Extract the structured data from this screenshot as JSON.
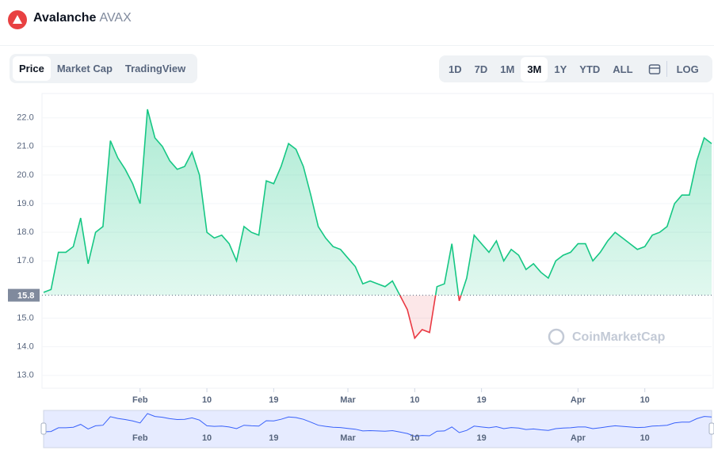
{
  "header": {
    "name": "Avalanche",
    "symbol": "AVAX"
  },
  "tabs": [
    "Price",
    "Market Cap",
    "TradingView"
  ],
  "ranges": [
    "1D",
    "7D",
    "1M",
    "3M",
    "1Y",
    "YTD",
    "ALL"
  ],
  "scale_button": "LOG",
  "watermark": "CoinMarketCap",
  "chart_data": {
    "type": "line",
    "categories": [
      "Jan 19",
      "Jan 20",
      "Jan 21",
      "Jan 22",
      "Jan 23",
      "Jan 24",
      "Jan 25",
      "Jan 26",
      "Jan 27",
      "Jan 28",
      "Jan 29",
      "Jan 30",
      "Jan 31",
      "Feb 1",
      "Feb 2",
      "Feb 3",
      "Feb 4",
      "Feb 5",
      "Feb 6",
      "Feb 7",
      "Feb 8",
      "Feb 9",
      "Feb 10",
      "Feb 11",
      "Feb 12",
      "Feb 13",
      "Feb 14",
      "Feb 15",
      "Feb 16",
      "Feb 17",
      "Feb 18",
      "Feb 19",
      "Feb 20",
      "Feb 21",
      "Feb 22",
      "Feb 23",
      "Feb 24",
      "Feb 25",
      "Feb 26",
      "Feb 27",
      "Feb 28",
      "Mar 1",
      "Mar 2",
      "Mar 3",
      "Mar 4",
      "Mar 5",
      "Mar 6",
      "Mar 7",
      "Mar 8",
      "Mar 9",
      "Mar 10",
      "Mar 11",
      "Mar 12",
      "Mar 13",
      "Mar 14",
      "Mar 15",
      "Mar 16",
      "Mar 17",
      "Mar 18",
      "Mar 19",
      "Mar 20",
      "Mar 21",
      "Mar 22",
      "Mar 23",
      "Mar 24",
      "Mar 25",
      "Mar 26",
      "Mar 27",
      "Mar 28",
      "Mar 29",
      "Mar 30",
      "Mar 31",
      "Apr 1",
      "Apr 2",
      "Apr 3",
      "Apr 4",
      "Apr 5",
      "Apr 6",
      "Apr 7",
      "Apr 8",
      "Apr 9",
      "Apr 10",
      "Apr 11",
      "Apr 12",
      "Apr 13",
      "Apr 14",
      "Apr 15",
      "Apr 16",
      "Apr 17",
      "Apr 18",
      "Apr 19"
    ],
    "series": [
      {
        "name": "Price",
        "color": "#16c784",
        "below_color": "#ea3943",
        "values": [
          15.9,
          16.0,
          17.3,
          17.3,
          17.5,
          18.5,
          16.9,
          18.0,
          18.2,
          21.2,
          20.6,
          20.2,
          19.7,
          19.0,
          22.3,
          21.3,
          21.0,
          20.5,
          20.2,
          20.3,
          20.8,
          20.0,
          18.0,
          17.8,
          17.9,
          17.6,
          17.0,
          18.2,
          18.0,
          17.9,
          19.8,
          19.7,
          20.3,
          21.1,
          20.9,
          20.3,
          19.3,
          18.2,
          17.8,
          17.5,
          17.4,
          17.1,
          16.8,
          16.2,
          16.3,
          16.2,
          16.1,
          16.3,
          15.8,
          15.3,
          14.3,
          14.6,
          14.5,
          16.1,
          16.2,
          17.6,
          15.6,
          16.4,
          17.9,
          17.6,
          17.3,
          17.7,
          17.0,
          17.4,
          17.2,
          16.7,
          16.9,
          16.6,
          16.4,
          17.0,
          17.2,
          17.3,
          17.6,
          17.6,
          17.0,
          17.3,
          17.7,
          18.0,
          17.8,
          17.6,
          17.4,
          17.5,
          17.9,
          18.0,
          18.2,
          19.0,
          19.3,
          19.3,
          20.5,
          21.3,
          21.1
        ]
      }
    ],
    "reference_price": 15.8,
    "ylim": [
      12.55,
      22.85
    ],
    "yticks": [
      {
        "value": 13,
        "label": "13.0"
      },
      {
        "value": 14,
        "label": "14.0"
      },
      {
        "value": 15,
        "label": "15.0"
      },
      {
        "value": 17,
        "label": "17.0"
      },
      {
        "value": 18,
        "label": "18.0"
      },
      {
        "value": 19,
        "label": "19.0"
      },
      {
        "value": 20,
        "label": "20.0"
      },
      {
        "value": 21,
        "label": "21.0"
      },
      {
        "value": 22,
        "label": "22.0"
      }
    ],
    "xticks": [
      {
        "value": "Feb 1",
        "label": "Feb"
      },
      {
        "value": "Feb 10",
        "label": "10"
      },
      {
        "value": "Feb 19",
        "label": "19"
      },
      {
        "value": "Mar 1",
        "label": "Mar"
      },
      {
        "value": "Mar 10",
        "label": "10"
      },
      {
        "value": "Mar 19",
        "label": "19"
      },
      {
        "value": "Apr 1",
        "label": "Apr"
      },
      {
        "value": "Apr 10",
        "label": "10"
      }
    ],
    "grid": true,
    "navigator_color": "#3861fb"
  }
}
